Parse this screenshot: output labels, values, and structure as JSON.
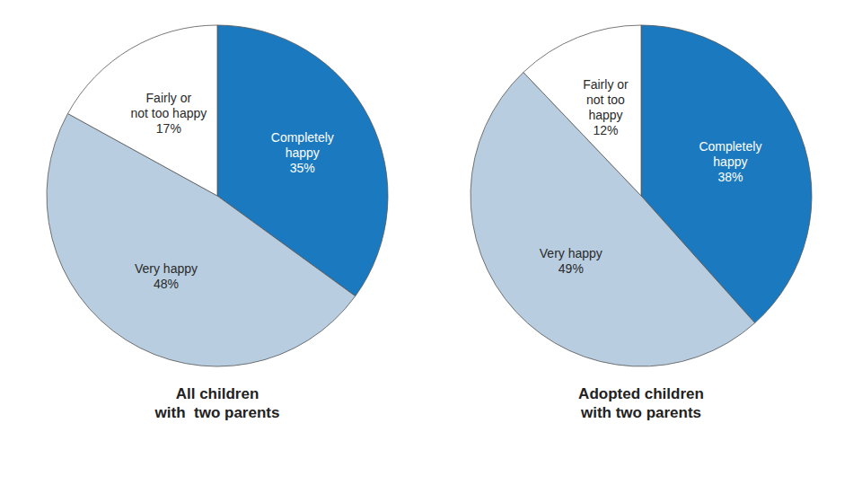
{
  "chart_data": [
    {
      "type": "pie",
      "title": "All children\nwith  two parents",
      "categories": [
        "Completely\nhappy",
        "Very happy",
        "Fairly or\nnot too happy"
      ],
      "values": [
        35,
        48,
        17
      ],
      "value_labels": [
        "35%",
        "48%",
        "17%"
      ],
      "colors": [
        "#1b7abf",
        "#b8cde0",
        "#ffffff"
      ]
    },
    {
      "type": "pie",
      "title": "Adopted children\nwith two parents",
      "categories": [
        "Completely\nhappy",
        "Very happy",
        "Fairly or\nnot too\nhappy"
      ],
      "values": [
        38,
        49,
        12
      ],
      "value_labels": [
        "38%",
        "49%",
        "12%"
      ],
      "colors": [
        "#1b7abf",
        "#b8cde0",
        "#ffffff"
      ]
    }
  ]
}
